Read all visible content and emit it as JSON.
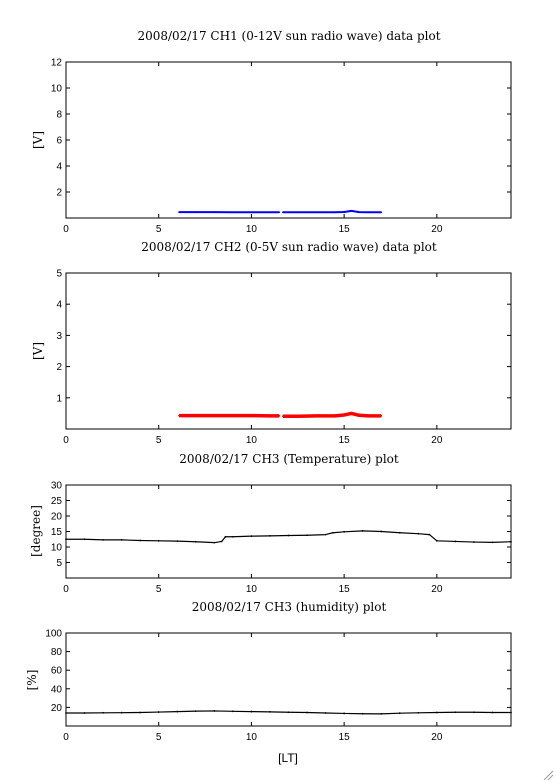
{
  "figure": {
    "xlabel": "[LT]"
  },
  "chart_data": [
    {
      "type": "scatter",
      "title": "2008/02/17 CH1 (0-12V sun radio wave) data plot",
      "ylabel": "[V]",
      "xlim": [
        0,
        24
      ],
      "ylim": [
        0,
        12
      ],
      "xticks": [
        0,
        5,
        10,
        15,
        20
      ],
      "yticks": [
        2,
        4,
        6,
        8,
        10,
        12
      ],
      "grid": false,
      "series": [
        {
          "color": "#0000ff",
          "x": [
            6.1,
            7,
            8,
            9,
            10,
            11,
            11.5,
            11.7,
            12.5,
            13.5,
            14.5,
            15,
            15.4,
            15.8,
            16.3,
            17
          ],
          "y": [
            0.45,
            0.45,
            0.45,
            0.44,
            0.44,
            0.44,
            0.44,
            0.44,
            0.44,
            0.44,
            0.44,
            0.46,
            0.55,
            0.45,
            0.44,
            0.44
          ]
        }
      ]
    },
    {
      "type": "scatter",
      "title": "2008/02/17 CH2 (0-5V sun radio wave) data plot",
      "ylabel": "[V]",
      "xlim": [
        0,
        24
      ],
      "ylim": [
        0,
        5
      ],
      "xticks": [
        0,
        5,
        10,
        15,
        20
      ],
      "yticks": [
        1,
        2,
        3,
        4,
        5
      ],
      "grid": false,
      "series": [
        {
          "color": "#ff0000",
          "x": [
            6.1,
            7,
            8,
            9,
            10,
            11,
            11.5,
            11.7,
            12.5,
            13.5,
            14.5,
            15,
            15.4,
            15.8,
            16.3,
            17
          ],
          "y": [
            0.43,
            0.43,
            0.43,
            0.43,
            0.43,
            0.42,
            0.42,
            0.41,
            0.41,
            0.42,
            0.42,
            0.45,
            0.5,
            0.44,
            0.42,
            0.42
          ]
        }
      ]
    },
    {
      "type": "scatter",
      "title": "2008/02/17 CH3 (Temperature) plot",
      "ylabel": "[degree]",
      "xlim": [
        0,
        24
      ],
      "ylim": [
        0,
        30
      ],
      "xticks": [
        0,
        5,
        10,
        15,
        20
      ],
      "yticks": [
        5,
        10,
        15,
        20,
        25,
        30
      ],
      "grid": false,
      "series": [
        {
          "color": "#000000",
          "x": [
            0,
            1,
            2,
            3,
            4,
            5,
            6,
            7,
            8,
            8.4,
            8.6,
            9,
            10,
            11,
            12,
            13,
            14,
            14.4,
            15,
            16,
            17,
            18,
            19,
            19.6,
            20,
            21,
            22,
            23,
            24
          ],
          "y": [
            12.5,
            12.5,
            12.3,
            12.3,
            12.1,
            12,
            11.9,
            11.7,
            11.4,
            11.8,
            13.3,
            13.3,
            13.5,
            13.6,
            13.7,
            13.8,
            14,
            14.6,
            14.9,
            15.2,
            15,
            14.6,
            14.3,
            14,
            12,
            11.8,
            11.6,
            11.5,
            11.7
          ]
        }
      ]
    },
    {
      "type": "scatter",
      "title": "2008/02/17 CH3 (humidity) plot",
      "ylabel": "[%]",
      "xlim": [
        0,
        24
      ],
      "ylim": [
        0,
        100
      ],
      "xticks": [
        0,
        5,
        10,
        15,
        20
      ],
      "yticks": [
        20,
        40,
        60,
        80,
        100
      ],
      "grid": false,
      "series": [
        {
          "color": "#000000",
          "x": [
            0,
            1,
            2,
            3,
            4,
            5,
            6,
            7,
            8,
            9,
            10,
            11,
            12,
            13,
            14,
            15,
            16,
            17,
            18,
            19,
            20,
            21,
            22,
            23,
            24
          ],
          "y": [
            14,
            14,
            14.2,
            14.3,
            14.5,
            15,
            15.5,
            16,
            16.2,
            15.8,
            15.5,
            15.2,
            14.8,
            14.5,
            14,
            13.5,
            13.2,
            13,
            13.8,
            14.2,
            14.5,
            14.8,
            14.8,
            14.5,
            14.5
          ]
        }
      ]
    }
  ]
}
